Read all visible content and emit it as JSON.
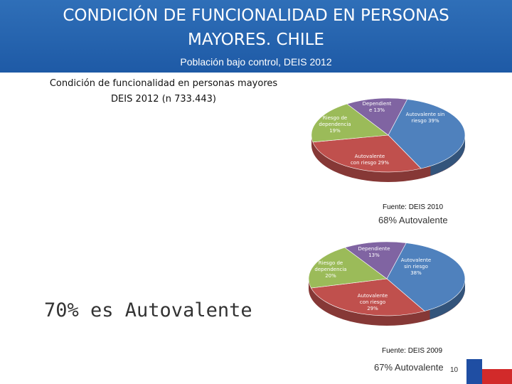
{
  "header": {
    "title_line1": "CONDICIÓN DE FUNCIONALIDAD EN PERSONAS",
    "title_line2": "MAYORES. CHILE",
    "subtitle": "Población bajo control, DEIS 2012"
  },
  "caption": {
    "line1": "Condición de funcionalidad en personas mayores",
    "line2": "DEIS 2012 (n 733.443)"
  },
  "highlight": "70% es Autovalente",
  "page_number": "10",
  "colors": {
    "banner": "#2463ad",
    "blue": "#4f81bd",
    "red": "#c0504d",
    "green": "#9bbb59",
    "purple": "#8064a2"
  },
  "chart_data": [
    {
      "type": "pie",
      "source": "Fuente: DEIS 2010",
      "summary": "68% Autovalente",
      "slices": [
        {
          "label_lines": [
            "Autovalente sin",
            "riesgo 39%"
          ],
          "value": 39,
          "color": "#4f81bd"
        },
        {
          "label_lines": [
            "Autovalente",
            "con riesgo 29%"
          ],
          "value": 29,
          "color": "#c0504d"
        },
        {
          "label_lines": [
            "Riesgo de",
            "dependencia",
            "19%"
          ],
          "value": 19,
          "color": "#9bbb59"
        },
        {
          "label_lines": [
            "Dependient",
            "e 13%"
          ],
          "value": 13,
          "color": "#8064a2"
        }
      ]
    },
    {
      "type": "pie",
      "source": "Fuente: DEIS 2009",
      "summary": "67% Autovalente",
      "slices": [
        {
          "label_lines": [
            "Autovalente",
            "sin riesgo",
            "38%"
          ],
          "value": 38,
          "color": "#4f81bd"
        },
        {
          "label_lines": [
            "Autovalente",
            "con riesgo",
            "29%"
          ],
          "value": 29,
          "color": "#c0504d"
        },
        {
          "label_lines": [
            "Riesgo de",
            "dependencia",
            "20%"
          ],
          "value": 20,
          "color": "#9bbb59"
        },
        {
          "label_lines": [
            "Dependiente",
            "13%"
          ],
          "value": 13,
          "color": "#8064a2"
        }
      ]
    }
  ]
}
